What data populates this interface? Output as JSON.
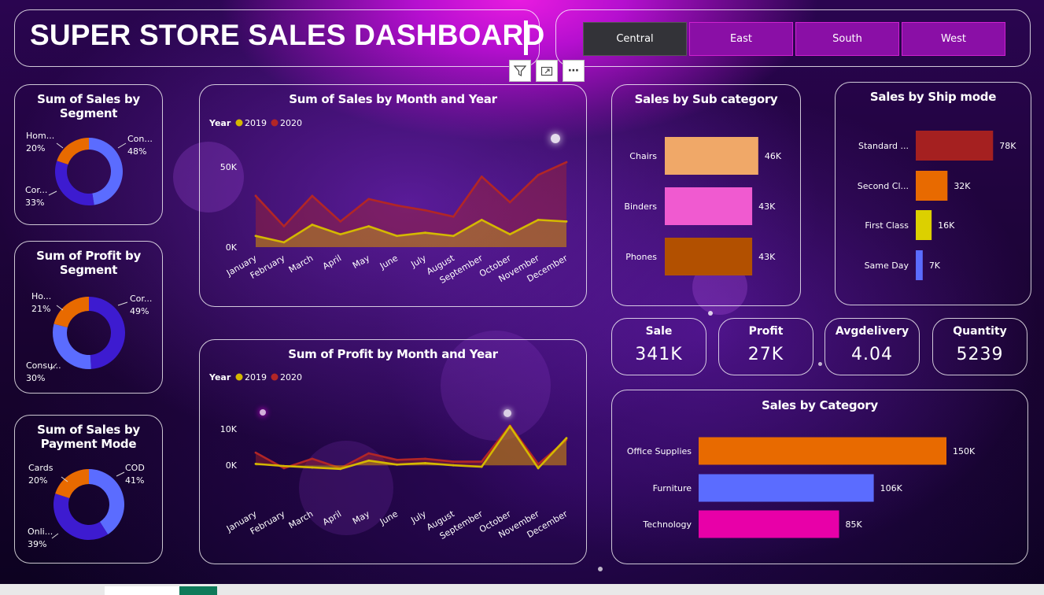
{
  "header": {
    "title": "SUPER STORE SALES DASHBOARD",
    "regions": [
      {
        "label": "Central",
        "selected": true
      },
      {
        "label": "East",
        "selected": false
      },
      {
        "label": "South",
        "selected": false
      },
      {
        "label": "West",
        "selected": false
      }
    ],
    "toolbar_icons": [
      "filter-icon",
      "focus-mode-icon",
      "more-options-icon"
    ],
    "toolbar_more_label": "⋯"
  },
  "colors": {
    "year_2019": "#d4b800",
    "year_2020": "#b22626",
    "orange": "#e86a00",
    "blue": "#5b6cff",
    "indigo": "#3d1bd0",
    "pink": "#f05ad0",
    "magenta": "#e800a8",
    "peach": "#f0a868",
    "rust": "#b25000",
    "dark_red": "#a52020",
    "yellow": "#dcd000"
  },
  "kpis": [
    {
      "title": "Sale",
      "value": "341K"
    },
    {
      "title": "Profit",
      "value": "27K"
    },
    {
      "title": "Avgdelivery",
      "value": "4.04"
    },
    {
      "title": "Quantity",
      "value": "5239"
    }
  ],
  "chart_data": [
    {
      "id": "sales_by_segment",
      "type": "pie",
      "title": "Sum of Sales by Segment",
      "slices": [
        {
          "label": "Con...",
          "pct_label": "48%",
          "value": 48,
          "color": "#5b6cff"
        },
        {
          "label": "Cor...",
          "pct_label": "33%",
          "value": 33,
          "color": "#3d1bd0"
        },
        {
          "label": "Hom...",
          "pct_label": "20%",
          "value": 20,
          "color": "#e86a00"
        }
      ]
    },
    {
      "id": "profit_by_segment",
      "type": "pie",
      "title": "Sum of Profit by Segment",
      "slices": [
        {
          "label": "Cor...",
          "pct_label": "49%",
          "value": 49,
          "color": "#3d1bd0"
        },
        {
          "label": "Consu...",
          "pct_label": "30%",
          "value": 30,
          "color": "#5b6cff"
        },
        {
          "label": "Ho...",
          "pct_label": "21%",
          "value": 21,
          "color": "#e86a00"
        }
      ]
    },
    {
      "id": "sales_by_payment",
      "type": "pie",
      "title": "Sum of Sales by Payment Mode",
      "slices": [
        {
          "label": "COD",
          "pct_label": "41%",
          "value": 41,
          "color": "#5b6cff"
        },
        {
          "label": "Onli...",
          "pct_label": "39%",
          "value": 39,
          "color": "#3d1bd0"
        },
        {
          "label": "Cards",
          "pct_label": "20%",
          "value": 20,
          "color": "#e86a00"
        }
      ]
    },
    {
      "id": "sales_by_month",
      "type": "area",
      "title": "Sum of Sales by Month and Year",
      "legend_title": "Year",
      "categories": [
        "January",
        "February",
        "March",
        "April",
        "May",
        "June",
        "July",
        "August",
        "September",
        "October",
        "November",
        "December"
      ],
      "series": [
        {
          "name": "2019",
          "color": "#d4b800",
          "values": [
            7,
            3,
            14,
            8,
            13,
            7,
            9,
            7,
            17,
            8,
            17,
            16
          ]
        },
        {
          "name": "2020",
          "color": "#b22626",
          "values": [
            32,
            13,
            32,
            16,
            30,
            26,
            23,
            19,
            44,
            28,
            45,
            53
          ]
        }
      ],
      "yticks": [
        {
          "value": 0,
          "label": "0K"
        },
        {
          "value": 50,
          "label": "50K"
        }
      ],
      "ylim": [
        0,
        55
      ]
    },
    {
      "id": "profit_by_month",
      "type": "area",
      "title": "Sum of Profit by Month and Year",
      "legend_title": "Year",
      "categories": [
        "January",
        "February",
        "March",
        "April",
        "May",
        "June",
        "July",
        "August",
        "September",
        "October",
        "November",
        "December"
      ],
      "series": [
        {
          "name": "2019",
          "color": "#d4b800",
          "values": [
            0.4,
            -0.2,
            -0.6,
            -1.0,
            1.3,
            0.2,
            0.6,
            0.0,
            -0.4,
            10.8,
            -0.8,
            7.5
          ]
        },
        {
          "name": "2020",
          "color": "#b22626",
          "values": [
            3.5,
            -0.8,
            1.8,
            -0.8,
            3.3,
            1.5,
            1.8,
            1.0,
            1.0,
            11.0,
            0.3,
            7.0
          ]
        }
      ],
      "yticks": [
        {
          "value": 0,
          "label": "0K"
        },
        {
          "value": 10,
          "label": "10K"
        }
      ],
      "ylim": [
        -3,
        12
      ]
    },
    {
      "id": "sales_by_subcategory",
      "type": "bar",
      "orientation": "horizontal",
      "title": "Sales by Sub category",
      "categories": [
        "Chairs",
        "Binders",
        "Phones"
      ],
      "values": [
        46,
        43,
        43
      ],
      "value_labels": [
        "46K",
        "43K",
        "43K"
      ],
      "colors": [
        "#f0a868",
        "#f05ad0",
        "#b25000"
      ],
      "xlim": [
        0,
        60
      ]
    },
    {
      "id": "sales_by_shipmode",
      "type": "bar",
      "orientation": "horizontal",
      "title": "Sales by Ship mode",
      "categories": [
        "Standard ...",
        "Second Cl...",
        "First Class",
        "Same Day"
      ],
      "values": [
        78,
        32,
        16,
        7
      ],
      "value_labels": [
        "78K",
        "32K",
        "16K",
        "7K"
      ],
      "colors": [
        "#a52020",
        "#e86a00",
        "#dcd000",
        "#5b6cff"
      ],
      "xlim": [
        0,
        100
      ]
    },
    {
      "id": "sales_by_category",
      "type": "bar",
      "orientation": "horizontal",
      "title": "Sales by Category",
      "categories": [
        "Office Supplies",
        "Furniture",
        "Technology"
      ],
      "values": [
        150,
        106,
        85
      ],
      "value_labels": [
        "150K",
        "106K",
        "85K"
      ],
      "colors": [
        "#e86a00",
        "#5b6cff",
        "#e800a8"
      ],
      "xlim": [
        0,
        180
      ]
    }
  ]
}
